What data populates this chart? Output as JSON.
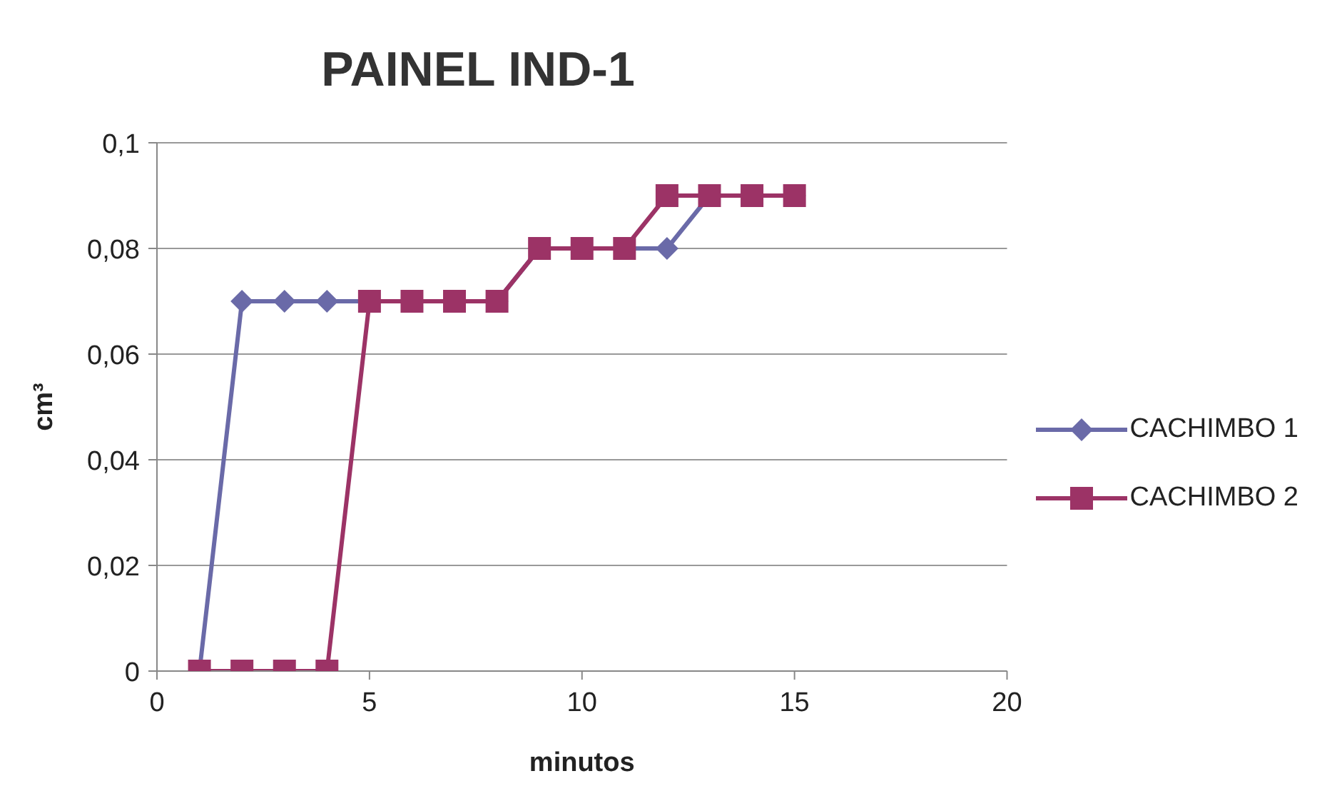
{
  "chart_data": {
    "type": "line",
    "title": "PAINEL IND-1",
    "xlabel": "minutos",
    "ylabel": "cm³",
    "x": [
      1,
      2,
      3,
      4,
      5,
      6,
      7,
      8,
      9,
      10,
      11,
      12,
      13,
      14,
      15
    ],
    "series": [
      {
        "name": "CACHIMBO 1",
        "color": "#6a6aa8",
        "marker": "diamond",
        "values": [
          0,
          0.07,
          0.07,
          0.07,
          0.07,
          0.07,
          0.07,
          0.07,
          0.08,
          0.08,
          0.08,
          0.08,
          0.09,
          0.09,
          0.09
        ]
      },
      {
        "name": "CACHIMBO 2",
        "color": "#9c3366",
        "marker": "square",
        "values": [
          0,
          0,
          0,
          0,
          0.07,
          0.07,
          0.07,
          0.07,
          0.08,
          0.08,
          0.08,
          0.09,
          0.09,
          0.09,
          0.09
        ]
      }
    ],
    "xlim": [
      0,
      20
    ],
    "xticks": [
      0,
      5,
      10,
      15,
      20
    ],
    "ylim": [
      0,
      0.1
    ],
    "yticks": [
      0,
      {
        "value": 0.02,
        "label": "0,02"
      },
      {
        "value": 0.04,
        "label": "0,04"
      },
      {
        "value": 0.06,
        "label": "0,06"
      },
      {
        "value": 0.08,
        "label": "0,08"
      },
      {
        "value": 0.1,
        "label": "0,1"
      }
    ],
    "grid": "y",
    "legend": "right",
    "line_style": "solid"
  }
}
